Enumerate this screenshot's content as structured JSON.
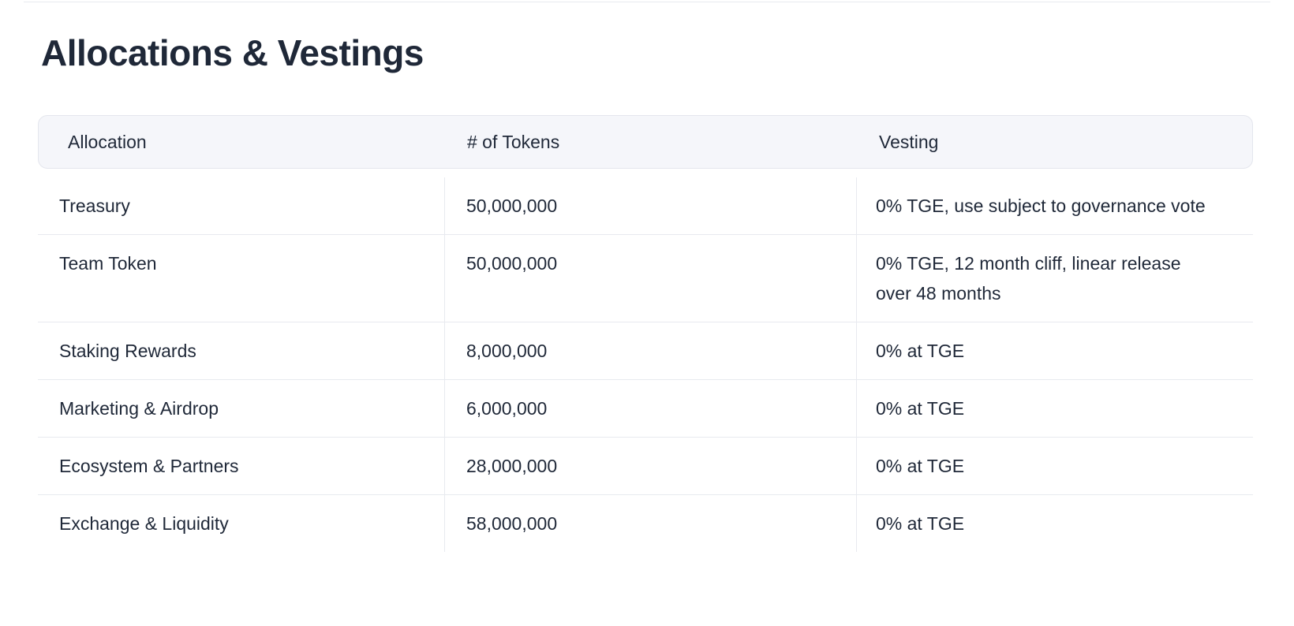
{
  "page": {
    "title": "Allocations & Vestings"
  },
  "colors": {
    "text": "#1f2838",
    "header_background": "#f5f6fa",
    "border": "#e8eaef",
    "page_background": "#ffffff"
  },
  "table": {
    "columns": [
      {
        "key": "allocation",
        "label": "Allocation"
      },
      {
        "key": "tokens",
        "label": "# of Tokens"
      },
      {
        "key": "vesting",
        "label": "Vesting"
      }
    ],
    "rows": [
      {
        "allocation": "Treasury",
        "tokens": "50,000,000",
        "vesting": "0% TGE, use subject to governance vote"
      },
      {
        "allocation": "Team Token",
        "tokens": "50,000,000",
        "vesting": "0% TGE, 12 month cliff, linear release over 48 months"
      },
      {
        "allocation": "Staking Rewards",
        "tokens": "8,000,000",
        "vesting": "0% at TGE"
      },
      {
        "allocation": "Marketing & Airdrop",
        "tokens": "6,000,000",
        "vesting": "0% at TGE"
      },
      {
        "allocation": "Ecosystem & Partners",
        "tokens": "28,000,000",
        "vesting": "0% at TGE"
      },
      {
        "allocation": "Exchange & Liquidity",
        "tokens": "58,000,000",
        "vesting": "0% at TGE"
      }
    ]
  }
}
